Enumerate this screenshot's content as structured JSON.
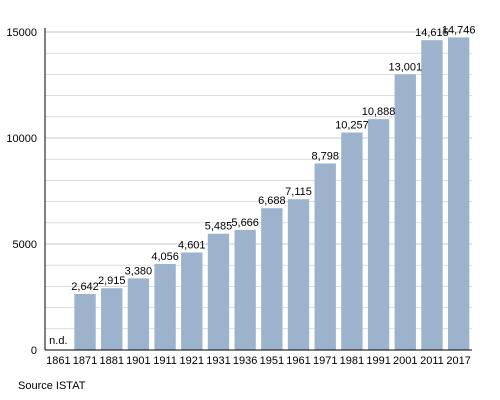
{
  "chart_data": {
    "type": "bar",
    "categories": [
      "1861",
      "1871",
      "1881",
      "1901",
      "1911",
      "1921",
      "1931",
      "1936",
      "1951",
      "1961",
      "1971",
      "1981",
      "1991",
      "2001",
      "2011",
      "2017"
    ],
    "values": [
      null,
      2642,
      2915,
      3380,
      4056,
      4601,
      5485,
      5666,
      6688,
      7115,
      8798,
      10257,
      10888,
      13001,
      14615,
      14746
    ],
    "data_labels": [
      "n.d.",
      "2,642",
      "2,915",
      "3,380",
      "4,056",
      "4,601",
      "5,485",
      "5,666",
      "6,688",
      "7,115",
      "8,798",
      "10,257",
      "10,888",
      "13,001",
      "14,615",
      "14,746"
    ],
    "y_ticks": [
      0,
      5000,
      10000,
      15000
    ],
    "ylim": [
      0,
      15000
    ],
    "grid": true,
    "legend": "none",
    "colors": {
      "bar": "#9db3cd",
      "grid": "#c8c8c8",
      "text": "#000000"
    }
  },
  "footer": {
    "source": "Source ISTAT"
  }
}
